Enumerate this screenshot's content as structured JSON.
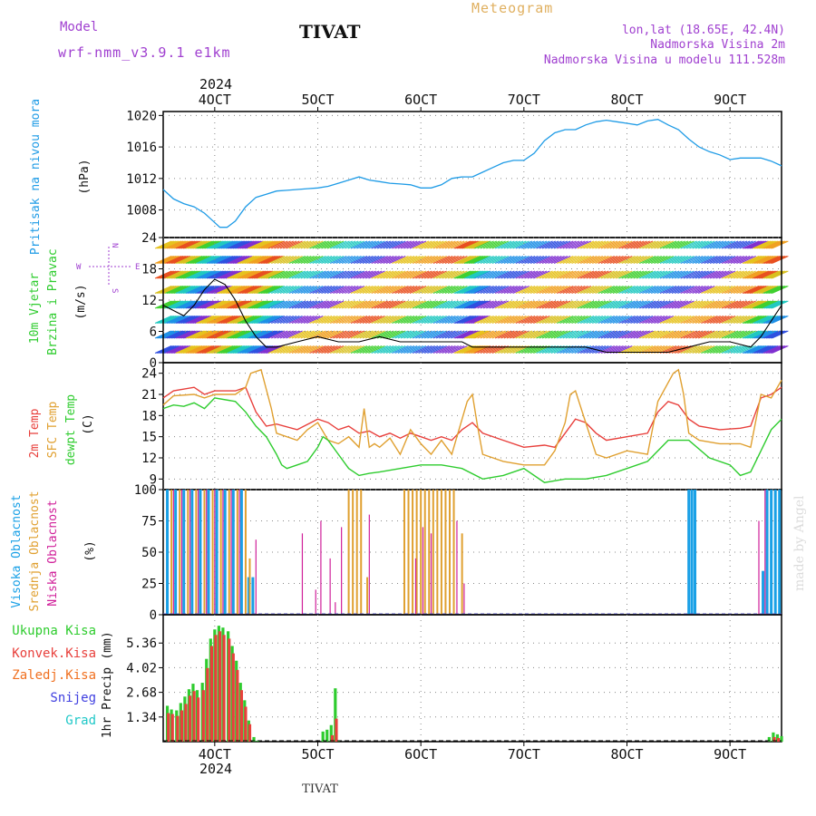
{
  "header": {
    "model_label": "Model",
    "model_name": "wrf-nmm_v3.9.1 e1km",
    "location": "TIVAT",
    "title": "Meteogram",
    "lonlat": "lon,lat (18.65E, 42.4N)",
    "elevation": "Nadmorska Visina 2m",
    "model_elevation": "Nadmorska Visina u modelu 111.528m",
    "footer": "TIVAT",
    "credit": "made by Angel",
    "year": "2024"
  },
  "colors": {
    "pressure": "#1e9be6",
    "temp2m": "#e8403c",
    "sfc": "#e0a030",
    "dewpt": "#2ecc2e",
    "high_cloud": "#19a0e6",
    "mid_cloud": "#e0a030",
    "low_cloud": "#d0209a",
    "total_precip": "#2ecc2e",
    "conv_precip": "#e8403c",
    "frz": "#f07020",
    "snow": "#4040e0",
    "grad": "#20c8c8",
    "header_purple": "#a040d0",
    "header_gold": "#e0b060"
  },
  "chart_data": [
    {
      "panel": "pressure",
      "type": "line",
      "ylabel_main": "Pritisak na nivou mora",
      "ylabel_unit": "(hPa)",
      "ylim": [
        1004.5,
        1020.5
      ],
      "yticks": [
        "1008",
        "1012",
        "1016",
        "1020"
      ],
      "yticks_values": [
        1008,
        1012,
        1016,
        1020
      ],
      "grid": true,
      "x_ticks": [
        "4OCT",
        "5OCT",
        "6OCT",
        "7OCT",
        "8OCT",
        "9OCT"
      ],
      "x_tick_days": [
        4,
        5,
        6,
        7,
        8,
        9
      ],
      "x_range_days": [
        3.5,
        9.5
      ],
      "series": [
        {
          "x": [
            3.5,
            3.6,
            3.7,
            3.8,
            3.9,
            3.95,
            4.05,
            4.12,
            4.2,
            4.3,
            4.4,
            4.5,
            4.6,
            4.7,
            4.8,
            4.9,
            5.0,
            5.1,
            5.2,
            5.3,
            5.4,
            5.5,
            5.6,
            5.7,
            5.8,
            5.9,
            6.0,
            6.1,
            6.2,
            6.3,
            6.4,
            6.5,
            6.6,
            6.7,
            6.8,
            6.9,
            7.0,
            7.1,
            7.2,
            7.3,
            7.4,
            7.5,
            7.6,
            7.7,
            7.8,
            7.9,
            8.0,
            8.1,
            8.2,
            8.3,
            8.4,
            8.5,
            8.6,
            8.7,
            8.8,
            8.9,
            9.0,
            9.1,
            9.2,
            9.3,
            9.4,
            9.5
          ],
          "values": [
            1010.6,
            1009.4,
            1008.8,
            1008.4,
            1007.6,
            1007.0,
            1005.8,
            1005.8,
            1006.6,
            1008.4,
            1009.6,
            1010.0,
            1010.4,
            1010.5,
            1010.6,
            1010.7,
            1010.8,
            1011.0,
            1011.4,
            1011.8,
            1012.2,
            1011.8,
            1011.6,
            1011.4,
            1011.3,
            1011.2,
            1010.8,
            1010.8,
            1011.2,
            1012.0,
            1012.2,
            1012.2,
            1012.8,
            1013.4,
            1014.0,
            1014.3,
            1014.3,
            1015.2,
            1016.8,
            1017.8,
            1018.2,
            1018.2,
            1018.8,
            1019.2,
            1019.4,
            1019.2,
            1019.0,
            1018.8,
            1019.3,
            1019.5,
            1018.8,
            1018.2,
            1017.0,
            1016.0,
            1015.4,
            1015.0,
            1014.4,
            1014.6,
            1014.6,
            1014.6,
            1014.2,
            1013.6
          ]
        }
      ]
    },
    {
      "panel": "wind",
      "type": "line",
      "ylabel_main": "10m Vjetar",
      "ylabel_sub": "Brzina i Pravac",
      "ylabel_unit": "(m/s)",
      "compass": {
        "n": "N",
        "s": "S",
        "e": "E",
        "w": "W"
      },
      "ylim": [
        0,
        24
      ],
      "yticks": [
        "0",
        "6",
        "12",
        "18",
        "24"
      ],
      "yticks_values": [
        0,
        6,
        12,
        18,
        24
      ],
      "grid": true,
      "series": [
        {
          "name": "speed",
          "x": [
            3.5,
            3.6,
            3.7,
            3.8,
            3.9,
            4.0,
            4.1,
            4.2,
            4.3,
            4.4,
            4.5,
            4.6,
            4.8,
            5.0,
            5.2,
            5.4,
            5.6,
            5.8,
            6.0,
            6.2,
            6.4,
            6.5,
            6.6,
            6.8,
            7.0,
            7.2,
            7.4,
            7.6,
            7.8,
            8.0,
            8.2,
            8.4,
            8.6,
            8.8,
            9.0,
            9.2,
            9.3,
            9.4,
            9.5
          ],
          "values": [
            11,
            10,
            9,
            11,
            14,
            16,
            15,
            12,
            8,
            5,
            3,
            3,
            4,
            5,
            4,
            4,
            5,
            4,
            4,
            4,
            4,
            3,
            3,
            3,
            3,
            3,
            3,
            3,
            2,
            2,
            2,
            2,
            3,
            4,
            4,
            3,
            5,
            8,
            11
          ]
        }
      ]
    },
    {
      "panel": "temperature",
      "type": "line",
      "ylabel_lines": [
        "2m Temp",
        "SFC Temp",
        "dewpt Temp"
      ],
      "ylabel_unit": "(C)",
      "ylim": [
        7.5,
        25.5
      ],
      "yticks": [
        "9",
        "12",
        "15",
        "18",
        "21",
        "24"
      ],
      "yticks_values": [
        9,
        12,
        15,
        18,
        21,
        24
      ],
      "grid": true,
      "series": [
        {
          "name": "2m Temp",
          "x": [
            3.5,
            3.6,
            3.8,
            3.9,
            4.0,
            4.2,
            4.3,
            4.4,
            4.5,
            4.6,
            4.8,
            5.0,
            5.1,
            5.2,
            5.3,
            5.4,
            5.5,
            5.6,
            5.7,
            5.8,
            5.9,
            6.0,
            6.1,
            6.2,
            6.3,
            6.4,
            6.5,
            6.6,
            6.8,
            7.0,
            7.2,
            7.3,
            7.4,
            7.5,
            7.6,
            7.7,
            7.8,
            8.0,
            8.2,
            8.3,
            8.4,
            8.5,
            8.6,
            8.7,
            8.9,
            9.1,
            9.2,
            9.3,
            9.4,
            9.5
          ],
          "values": [
            20.5,
            21.5,
            22.0,
            21.0,
            21.5,
            21.5,
            22.0,
            18.5,
            16.5,
            16.8,
            16.0,
            17.5,
            17.0,
            16.0,
            16.5,
            15.5,
            15.8,
            15.0,
            15.5,
            14.8,
            15.5,
            15.0,
            14.5,
            15.0,
            14.5,
            16.0,
            17.0,
            15.5,
            14.5,
            13.5,
            13.8,
            13.5,
            15.5,
            17.5,
            17.0,
            15.5,
            14.5,
            15.0,
            15.5,
            18.5,
            20.0,
            19.5,
            17.5,
            16.5,
            16.0,
            16.2,
            16.5,
            20.5,
            21.0,
            22.0
          ]
        },
        {
          "name": "SFC Temp",
          "x": [
            3.5,
            3.6,
            3.8,
            3.9,
            4.0,
            4.2,
            4.3,
            4.35,
            4.45,
            4.55,
            4.6,
            4.8,
            4.9,
            5.0,
            5.1,
            5.2,
            5.3,
            5.4,
            5.45,
            5.5,
            5.55,
            5.6,
            5.7,
            5.8,
            5.9,
            6.0,
            6.1,
            6.2,
            6.3,
            6.45,
            6.5,
            6.55,
            6.6,
            6.8,
            7.0,
            7.2,
            7.3,
            7.4,
            7.45,
            7.5,
            7.6,
            7.7,
            7.8,
            8.0,
            8.2,
            8.3,
            8.45,
            8.5,
            8.55,
            8.6,
            8.7,
            8.9,
            9.1,
            9.2,
            9.3,
            9.4,
            9.5
          ],
          "values": [
            19.5,
            20.8,
            21.0,
            20.5,
            21.0,
            21.0,
            22.0,
            24.0,
            24.5,
            19.0,
            15.5,
            14.5,
            16.0,
            17.0,
            14.5,
            14.0,
            15.0,
            13.5,
            19.0,
            13.5,
            14.0,
            13.5,
            14.8,
            12.5,
            16.0,
            14.0,
            12.5,
            14.5,
            12.5,
            20.0,
            21.0,
            16.5,
            12.5,
            11.5,
            11.0,
            11.0,
            13.0,
            17.0,
            21.0,
            21.5,
            17.0,
            12.5,
            12.0,
            13.0,
            12.5,
            20.0,
            24.0,
            24.5,
            21.0,
            15.5,
            14.5,
            14.0,
            14.0,
            13.5,
            21.0,
            20.5,
            23.0
          ]
        },
        {
          "name": "dewpt Temp",
          "x": [
            3.5,
            3.6,
            3.7,
            3.8,
            3.9,
            4.0,
            4.2,
            4.3,
            4.4,
            4.5,
            4.6,
            4.65,
            4.7,
            4.8,
            4.9,
            5.0,
            5.05,
            5.1,
            5.2,
            5.3,
            5.4,
            5.5,
            5.6,
            5.8,
            6.0,
            6.2,
            6.4,
            6.6,
            6.8,
            7.0,
            7.2,
            7.4,
            7.6,
            7.8,
            8.0,
            8.2,
            8.4,
            8.6,
            8.8,
            9.0,
            9.1,
            9.2,
            9.3,
            9.4,
            9.5
          ],
          "values": [
            19.0,
            19.5,
            19.3,
            19.8,
            19.0,
            20.5,
            20.0,
            18.5,
            16.5,
            15.0,
            12.5,
            11.0,
            10.5,
            11.0,
            11.5,
            13.5,
            15.0,
            14.5,
            12.5,
            10.5,
            9.5,
            9.8,
            10.0,
            10.5,
            11.0,
            11.0,
            10.5,
            9.0,
            9.5,
            10.5,
            8.5,
            9.0,
            9.0,
            9.5,
            10.5,
            11.5,
            14.5,
            14.5,
            12.0,
            11.0,
            9.5,
            10.0,
            13.0,
            16.0,
            17.5
          ]
        }
      ]
    },
    {
      "panel": "clouds",
      "type": "bar",
      "ylabel_lines": [
        "Visoka Oblacnost",
        "Srednja Oblacnost",
        "Niska Oblacnost"
      ],
      "ylabel_unit": "(%)",
      "ylim": [
        0,
        100
      ],
      "yticks": [
        "0",
        "25",
        "50",
        "75",
        "100"
      ],
      "yticks_values": [
        0,
        25,
        50,
        75,
        100
      ],
      "grid": true,
      "series": [
        {
          "name": "Visoka Oblacnost",
          "x": [
            3.54,
            3.62,
            3.7,
            3.78,
            3.86,
            3.94,
            4.02,
            4.1,
            4.18,
            4.26,
            4.33,
            4.37,
            8.6,
            8.63,
            8.66,
            9.32,
            9.36,
            9.4,
            9.44,
            9.48
          ],
          "values": [
            100,
            100,
            100,
            100,
            100,
            100,
            100,
            100,
            100,
            100,
            30,
            30,
            100,
            100,
            100,
            35,
            100,
            100,
            100,
            100
          ]
        },
        {
          "name": "Srednja Oblacnost",
          "x": [
            3.58,
            3.66,
            3.74,
            3.82,
            3.9,
            3.98,
            4.06,
            4.14,
            4.22,
            4.3,
            4.34,
            5.3,
            5.34,
            5.38,
            5.42,
            5.48,
            5.84,
            5.88,
            5.92,
            5.96,
            6.0,
            6.04,
            6.08,
            6.12,
            6.16,
            6.2,
            6.24,
            6.28,
            6.32,
            6.4
          ],
          "values": [
            100,
            100,
            100,
            100,
            100,
            100,
            100,
            100,
            100,
            100,
            45,
            100,
            100,
            100,
            100,
            30,
            100,
            100,
            100,
            100,
            100,
            100,
            100,
            100,
            100,
            100,
            100,
            100,
            100,
            65
          ]
        },
        {
          "name": "Niska Oblacnost",
          "x": [
            3.6,
            3.68,
            3.76,
            3.84,
            3.92,
            4.0,
            4.08,
            4.16,
            4.24,
            4.4,
            4.85,
            4.98,
            5.03,
            5.12,
            5.17,
            5.23,
            5.5,
            5.95,
            6.02,
            6.1,
            6.35,
            6.42,
            9.28,
            9.34
          ],
          "values": [
            100,
            100,
            100,
            100,
            100,
            100,
            100,
            100,
            100,
            60,
            65,
            20,
            75,
            45,
            10,
            70,
            80,
            45,
            70,
            65,
            75,
            25,
            75,
            100
          ]
        }
      ]
    },
    {
      "panel": "precip",
      "type": "bar",
      "ylabel_main": "1hr Precip",
      "ylabel_unit": "(mm)",
      "legend": [
        "Ukupna Kisa",
        "Konvek.Kisa",
        "Zaledj.Kisa",
        "Snijeg",
        "Grad"
      ],
      "ylim": [
        0,
        6.9
      ],
      "yticks": [
        "1.34",
        "2.68",
        "4.02",
        "5.36"
      ],
      "yticks_values": [
        1.34,
        2.68,
        4.02,
        5.36
      ],
      "grid": true,
      "x_ticks_bottom": [
        "4OCT",
        "5OCT",
        "6OCT",
        "7OCT",
        "8OCT",
        "9OCT"
      ],
      "series": [
        {
          "name": "Ukupna Kisa",
          "x": [
            3.54,
            3.58,
            3.63,
            3.67,
            3.71,
            3.75,
            3.79,
            3.83,
            3.88,
            3.92,
            3.96,
            4.0,
            4.04,
            4.08,
            4.13,
            4.17,
            4.21,
            4.25,
            4.29,
            4.33,
            4.38,
            4.42,
            5.05,
            5.09,
            5.13,
            5.17,
            5.2,
            9.38,
            9.42,
            9.46,
            9.5
          ],
          "values": [
            1.95,
            1.75,
            1.7,
            2.1,
            2.45,
            2.85,
            3.15,
            2.8,
            3.2,
            4.5,
            5.6,
            6.1,
            6.3,
            6.2,
            6.0,
            5.2,
            4.4,
            3.2,
            2.25,
            1.15,
            0.25,
            0.05,
            0.55,
            0.65,
            0.9,
            2.9,
            0.05,
            0.25,
            0.5,
            0.4,
            0.3
          ]
        },
        {
          "name": "Konvek.Kisa",
          "x": [
            3.55,
            3.59,
            3.64,
            3.68,
            3.72,
            3.76,
            3.8,
            3.84,
            3.89,
            3.93,
            3.97,
            4.01,
            4.05,
            4.09,
            4.14,
            4.18,
            4.22,
            4.26,
            4.3,
            4.34,
            5.14,
            5.18,
            9.43,
            9.47
          ],
          "values": [
            1.55,
            1.5,
            1.4,
            1.7,
            2.05,
            2.5,
            2.75,
            2.4,
            2.8,
            4.0,
            5.2,
            5.8,
            6.0,
            5.8,
            5.6,
            4.8,
            3.9,
            2.8,
            1.9,
            0.95,
            0.35,
            1.25,
            0.25,
            0.2
          ]
        }
      ]
    }
  ]
}
